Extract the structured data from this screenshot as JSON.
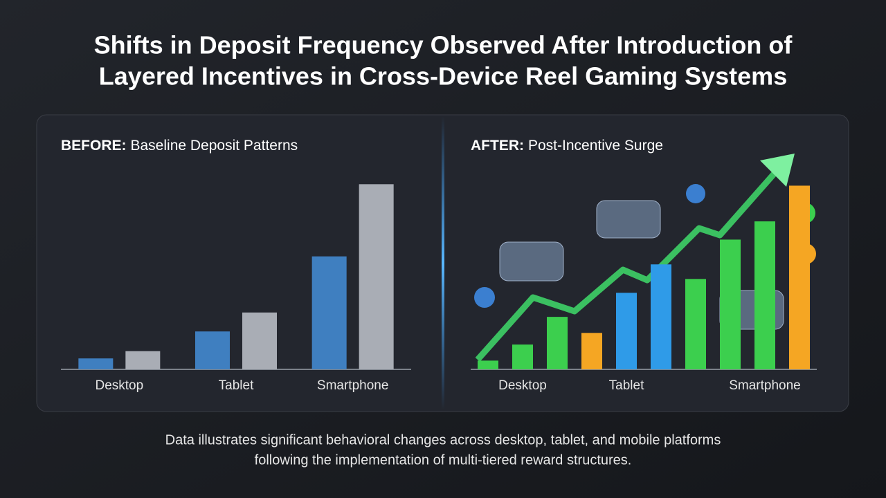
{
  "header": {
    "title": [
      "Shifts in Deposit Frequency Observed After Introduction of",
      "Layered Incentives in Cross-Device Reel Gaming Systems"
    ]
  },
  "chart_data": [
    {
      "type": "grouped-bar",
      "label": "BEFORE:",
      "title": "Baseline Deposit Patterns",
      "categories": [
        "Desktop",
        "Tablet",
        "Smartphone"
      ],
      "series": [
        {
          "color": "#3f7fc0",
          "values": [
            15,
            52,
            155
          ]
        },
        {
          "color": "#a9adb5",
          "values": [
            25,
            78,
            254
          ]
        }
      ],
      "ylim": [
        0,
        260
      ]
    },
    {
      "type": "bar",
      "label": "AFTER:",
      "title": "Post-Incentive Surge",
      "categories": [
        null,
        "Desktop",
        null,
        null,
        "Tablet",
        null,
        null,
        null,
        "Smartphone",
        null
      ],
      "values": [
        12,
        34,
        72,
        50,
        105,
        144,
        124,
        178,
        203,
        252
      ],
      "colors": [
        "#3ccf4e",
        "#3ccf4e",
        "#3ccf4e",
        "#f5a623",
        "#2f9be8",
        "#2f9be8",
        "#3ccf4e",
        "#3ccf4e",
        "#3ccf4e",
        "#f5a623"
      ],
      "ylim": [
        0,
        260
      ]
    }
  ],
  "footer": [
    "Data illustrates significant behavioral changes across desktop, tablet, and mobile platforms",
    "following the implementation of multi-tiered reward structures."
  ]
}
